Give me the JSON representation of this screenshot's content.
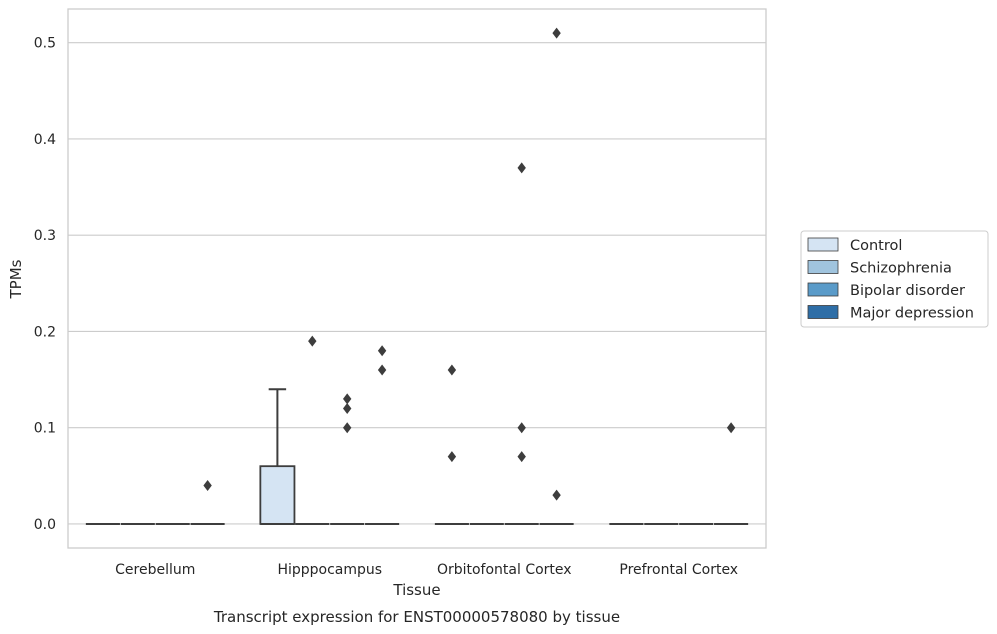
{
  "chart_data": {
    "type": "box",
    "title": "Transcript expression for ENST00000578080 by tissue",
    "xlabel": "Tissue",
    "ylabel": "TPMs",
    "categories": [
      "Cerebellum",
      "Hipppocampus",
      "Orbitofontal Cortex",
      "Prefrontal Cortex"
    ],
    "ylim": [
      -0.025,
      0.535
    ],
    "yticks": [
      0.0,
      0.1,
      0.2,
      0.3,
      0.4,
      0.5
    ],
    "ytick_labels": [
      "0.0",
      "0.1",
      "0.2",
      "0.3",
      "0.4",
      "0.5"
    ],
    "grid": true,
    "legend_position": "right",
    "series": [
      {
        "name": "Control",
        "color": "#d5e4f3",
        "boxes": [
          {
            "q1": 0,
            "median": 0,
            "q3": 0,
            "whislo": 0,
            "whishi": 0,
            "outliers": []
          },
          {
            "q1": 0,
            "median": 0,
            "q3": 0.06,
            "whislo": 0,
            "whishi": 0.14,
            "outliers": []
          },
          {
            "q1": 0,
            "median": 0,
            "q3": 0,
            "whislo": 0,
            "whishi": 0,
            "outliers": [
              0.16,
              0.07
            ]
          },
          {
            "q1": 0,
            "median": 0,
            "q3": 0,
            "whislo": 0,
            "whishi": 0,
            "outliers": []
          }
        ]
      },
      {
        "name": "Schizophrenia",
        "color": "#a0c4de",
        "boxes": [
          {
            "q1": 0,
            "median": 0,
            "q3": 0,
            "whislo": 0,
            "whishi": 0,
            "outliers": []
          },
          {
            "q1": 0,
            "median": 0,
            "q3": 0,
            "whislo": 0,
            "whishi": 0,
            "outliers": [
              0.19
            ]
          },
          {
            "q1": 0,
            "median": 0,
            "q3": 0,
            "whislo": 0,
            "whishi": 0,
            "outliers": []
          },
          {
            "q1": 0,
            "median": 0,
            "q3": 0,
            "whislo": 0,
            "whishi": 0,
            "outliers": []
          }
        ]
      },
      {
        "name": "Bipolar disorder",
        "color": "#5a9bc9",
        "boxes": [
          {
            "q1": 0,
            "median": 0,
            "q3": 0,
            "whislo": 0,
            "whishi": 0,
            "outliers": []
          },
          {
            "q1": 0,
            "median": 0,
            "q3": 0,
            "whislo": 0,
            "whishi": 0,
            "outliers": [
              0.13,
              0.12,
              0.1
            ]
          },
          {
            "q1": 0,
            "median": 0,
            "q3": 0,
            "whislo": 0,
            "whishi": 0,
            "outliers": [
              0.37,
              0.1,
              0.07
            ]
          },
          {
            "q1": 0,
            "median": 0,
            "q3": 0,
            "whislo": 0,
            "whishi": 0,
            "outliers": []
          }
        ]
      },
      {
        "name": "Major depression",
        "color": "#2e6ea7",
        "boxes": [
          {
            "q1": 0,
            "median": 0,
            "q3": 0,
            "whislo": 0,
            "whishi": 0,
            "outliers": [
              0.04
            ]
          },
          {
            "q1": 0,
            "median": 0,
            "q3": 0,
            "whislo": 0,
            "whishi": 0,
            "outliers": [
              0.18,
              0.16
            ]
          },
          {
            "q1": 0,
            "median": 0,
            "q3": 0,
            "whislo": 0,
            "whishi": 0,
            "outliers": [
              0.51,
              0.03
            ]
          },
          {
            "q1": 0,
            "median": 0,
            "q3": 0,
            "whislo": 0,
            "whishi": 0,
            "outliers": [
              0.1
            ]
          }
        ]
      }
    ]
  }
}
